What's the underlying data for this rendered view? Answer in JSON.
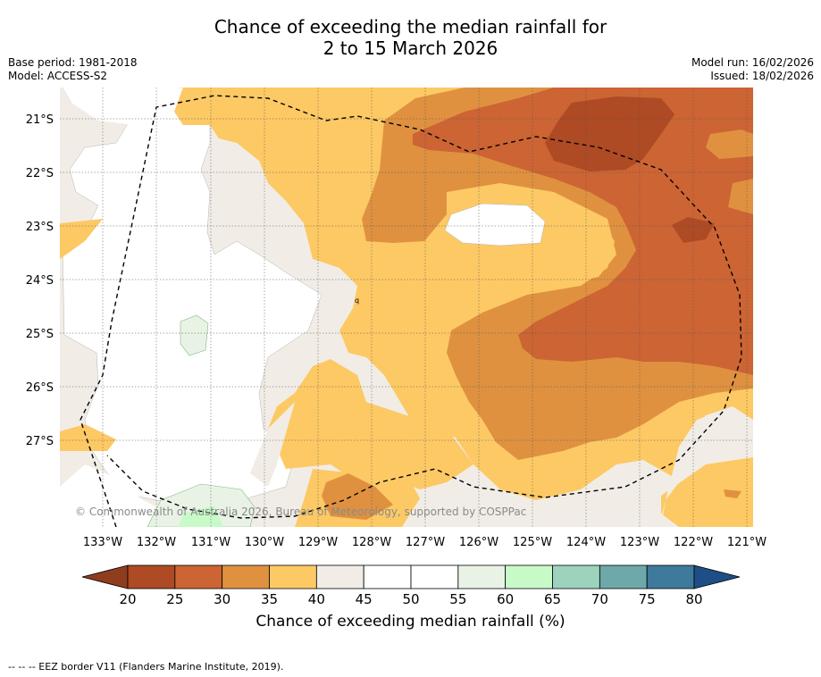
{
  "title": {
    "line1": "Chance of exceeding the median rainfall for",
    "line2": "2 to 15 March 2026"
  },
  "meta": {
    "base_period": "Base period: 1981-2018",
    "model": "Model: ACCESS-S2",
    "model_run": "Model run: 16/02/2026",
    "issued": "Issued: 18/02/2026"
  },
  "map": {
    "lat_labels": [
      "21°S",
      "22°S",
      "23°S",
      "24°S",
      "25°S",
      "26°S",
      "27°S"
    ],
    "lon_labels": [
      "133°W",
      "132°W",
      "131°W",
      "130°W",
      "129°W",
      "128°W",
      "127°W",
      "126°W",
      "125°W",
      "124°W",
      "123°W",
      "122°W",
      "121°W"
    ],
    "copyright": "© Commonwealth of Australia 2026, Bureau of Meteorology, supported by COSPPac",
    "small_mark": "q"
  },
  "colorbar": {
    "ticks": [
      "20",
      "25",
      "30",
      "35",
      "40",
      "45",
      "50",
      "55",
      "60",
      "65",
      "70",
      "75",
      "80"
    ],
    "under_color": "#8f3d1f",
    "over_color": "#1d4f86",
    "colors": [
      "#ae4a24",
      "#cc6434",
      "#df9140",
      "#fdc964",
      "#f1ede6",
      "#ffffff",
      "#ffffff",
      "#e8f3e6",
      "#c8fac8",
      "#9dd3bc",
      "#6fa8a8",
      "#3f799b"
    ],
    "label": "Chance of exceeding median rainfall (%)"
  },
  "footnote": "--  --  -- EEZ border V11 (Flanders Marine Institute, 2019)."
}
